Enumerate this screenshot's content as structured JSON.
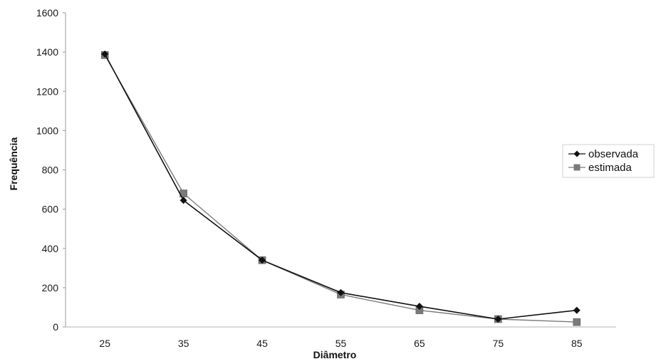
{
  "chart_data": {
    "type": "line",
    "title": "",
    "xlabel": "Diâmetro",
    "ylabel": "Frequência",
    "x": [
      25,
      35,
      45,
      55,
      65,
      75,
      85
    ],
    "x_tick_labels": [
      "25",
      "35",
      "45",
      "55",
      "65",
      "75",
      "85"
    ],
    "ylim": [
      0,
      1600
    ],
    "y_ticks": [
      0,
      200,
      400,
      600,
      800,
      1000,
      1200,
      1400,
      1600
    ],
    "y_tick_labels": [
      "0",
      "200",
      "400",
      "600",
      "800",
      "1000",
      "1200",
      "1400",
      "1600"
    ],
    "grid": false,
    "legend_position": "right",
    "series": [
      {
        "name": "observada",
        "marker": "diamond",
        "color": "#111111",
        "values": [
          1390,
          645,
          340,
          175,
          105,
          40,
          85
        ]
      },
      {
        "name": "estimada",
        "marker": "square",
        "color": "#7a7a7a",
        "values": [
          1385,
          680,
          340,
          165,
          85,
          40,
          25
        ]
      }
    ]
  }
}
